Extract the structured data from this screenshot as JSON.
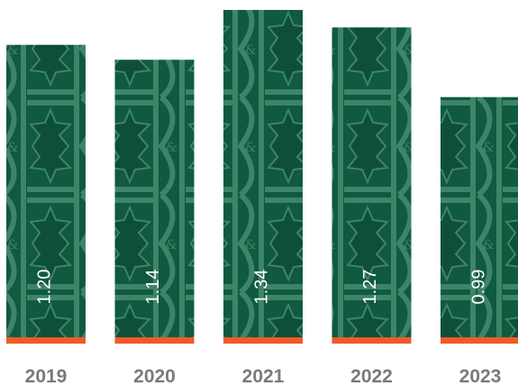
{
  "chart_data": {
    "type": "bar",
    "categories": [
      "2019",
      "2020",
      "2021",
      "2022",
      "2023"
    ],
    "values": [
      1.2,
      1.14,
      1.34,
      1.27,
      0.99
    ],
    "value_labels": [
      "1.20",
      "1.14",
      "1.34",
      "1.27",
      "0.99"
    ],
    "color": "#0f5a40",
    "ylim": [
      0,
      1.38
    ]
  }
}
